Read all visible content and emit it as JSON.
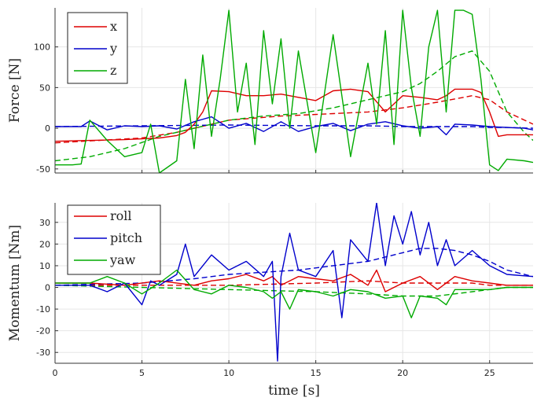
{
  "chart_data": [
    {
      "type": "line",
      "title": "",
      "xlabel": "",
      "ylabel": "Force [N]",
      "xlim": [
        0,
        27.5
      ],
      "ylim": [
        -55,
        148
      ],
      "xticks": [
        0,
        5,
        10,
        15,
        20,
        25
      ],
      "yticks": [
        -50,
        0,
        50,
        100
      ],
      "grid": true,
      "legend": "top-left",
      "series": [
        {
          "name": "x",
          "color": "#dd0000",
          "style": "solid",
          "x": [
            0,
            2,
            4,
            6,
            7,
            7.5,
            8,
            8.5,
            9,
            10,
            11,
            12,
            13,
            14,
            15,
            16,
            17,
            18,
            19,
            20,
            21,
            22,
            22.5,
            23,
            24,
            24.5,
            25,
            25.5,
            26,
            27,
            27.5
          ],
          "y": [
            -16,
            -15,
            -14,
            -12,
            -9,
            -5,
            5,
            20,
            46,
            45,
            40,
            40,
            42,
            38,
            34,
            46,
            48,
            45,
            20,
            40,
            38,
            35,
            40,
            48,
            48,
            44,
            20,
            -10,
            -8,
            -8,
            -8
          ]
        },
        {
          "name": "y",
          "color": "#0000cc",
          "style": "solid",
          "x": [
            0,
            1.5,
            2,
            3,
            4,
            5,
            6,
            7,
            8,
            9,
            10,
            11,
            12,
            13,
            14,
            15,
            16,
            17,
            18,
            19,
            20,
            21,
            22,
            22.5,
            23,
            24,
            25,
            26,
            27,
            27.5
          ],
          "y": [
            2,
            2,
            9,
            -2,
            3,
            2,
            3,
            -1,
            8,
            14,
            0,
            6,
            -4,
            8,
            -4,
            2,
            6,
            -3,
            5,
            8,
            3,
            0,
            2,
            -8,
            5,
            4,
            2,
            1,
            0,
            -2
          ]
        },
        {
          "name": "z",
          "color": "#00aa00",
          "style": "solid",
          "x": [
            0,
            1,
            1.5,
            2,
            3,
            4,
            5,
            5.5,
            6,
            7,
            7.5,
            8,
            8.5,
            9,
            9.5,
            10,
            10.5,
            11,
            11.5,
            12,
            12.5,
            13,
            13.5,
            14,
            15,
            16,
            17,
            18,
            18.5,
            19,
            19.5,
            20,
            20.5,
            21,
            21.5,
            22,
            22.5,
            23,
            23.5,
            24,
            24.5,
            25,
            25.5,
            26,
            27,
            27.5
          ],
          "y": [
            -45,
            -45,
            -44,
            10,
            -15,
            -35,
            -30,
            5,
            -55,
            -40,
            60,
            -25,
            90,
            -10,
            60,
            145,
            20,
            80,
            -20,
            120,
            30,
            110,
            0,
            95,
            -30,
            115,
            -35,
            80,
            5,
            120,
            -20,
            145,
            50,
            -10,
            100,
            145,
            20,
            145,
            145,
            140,
            60,
            -45,
            -52,
            -38,
            -40,
            -42
          ]
        },
        {
          "name": "",
          "color": "#dd0000",
          "style": "dashed",
          "x": [
            0,
            5,
            7,
            8,
            10,
            13,
            16,
            18,
            20,
            22,
            24,
            25,
            26,
            27.5
          ],
          "y": [
            -18,
            -12,
            -5,
            0,
            10,
            15,
            18,
            20,
            25,
            32,
            40,
            35,
            20,
            5
          ]
        },
        {
          "name": "",
          "color": "#0000cc",
          "style": "dashed",
          "x": [
            0,
            5,
            10,
            15,
            18,
            20,
            22,
            24,
            25,
            26,
            27.5
          ],
          "y": [
            2,
            3,
            4,
            3,
            3,
            2,
            2,
            2,
            1,
            1,
            0
          ]
        },
        {
          "name": "",
          "color": "#00aa00",
          "style": "dashed",
          "x": [
            0,
            2,
            4,
            6,
            7,
            8,
            10,
            12,
            14,
            16,
            18,
            20,
            21,
            22,
            23,
            24,
            25,
            26,
            27,
            27.5
          ],
          "y": [
            -40,
            -35,
            -25,
            -10,
            -5,
            0,
            10,
            15,
            18,
            25,
            35,
            45,
            55,
            70,
            88,
            95,
            70,
            20,
            -5,
            -15
          ]
        }
      ]
    },
    {
      "type": "line",
      "title": "",
      "xlabel": "time [s]",
      "ylabel": "Momentum [Nm]",
      "xlim": [
        0,
        27.5
      ],
      "ylim": [
        -35,
        39
      ],
      "xticks": [
        0,
        5,
        10,
        15,
        20,
        25
      ],
      "yticks": [
        -30,
        -20,
        -10,
        0,
        10,
        20,
        30
      ],
      "grid": true,
      "legend": "top-left",
      "series": [
        {
          "name": "roll",
          "color": "#dd0000",
          "style": "solid",
          "x": [
            0,
            2,
            4,
            6,
            8,
            9,
            10,
            11,
            12,
            12.5,
            13,
            14,
            15,
            16,
            17,
            18,
            18.5,
            19,
            20,
            21,
            22,
            23,
            24,
            25,
            26,
            27.5
          ],
          "y": [
            2,
            2,
            1,
            3,
            1,
            3,
            4,
            6,
            3,
            5,
            1,
            5,
            4,
            3,
            6,
            1,
            8,
            -2,
            2,
            5,
            -1,
            5,
            3,
            2,
            1,
            1
          ]
        },
        {
          "name": "pitch",
          "color": "#0000cc",
          "style": "solid",
          "x": [
            0,
            2,
            3,
            4,
            5,
            5.5,
            6,
            7,
            7.5,
            8,
            9,
            10,
            11,
            12,
            12.5,
            12.8,
            13,
            13.5,
            14,
            15,
            16,
            16.5,
            17,
            18,
            18.5,
            19,
            19.5,
            20,
            20.5,
            21,
            21.5,
            22,
            22.5,
            23,
            24,
            25,
            26,
            27.5
          ],
          "y": [
            1,
            1,
            -2,
            2,
            -8,
            3,
            1,
            6,
            20,
            5,
            15,
            8,
            12,
            5,
            12,
            -34,
            5,
            25,
            8,
            5,
            17,
            -14,
            22,
            12,
            39,
            10,
            33,
            20,
            35,
            15,
            30,
            10,
            22,
            10,
            17,
            10,
            6,
            5
          ]
        },
        {
          "name": "yaw",
          "color": "#00aa00",
          "style": "solid",
          "x": [
            0,
            2,
            3,
            4,
            5,
            6,
            7,
            8,
            9,
            10,
            11,
            12,
            12.5,
            13,
            13.5,
            14,
            15,
            16,
            17,
            18,
            19,
            20,
            20.5,
            21,
            22,
            22.5,
            23,
            24,
            25,
            26,
            27.5
          ],
          "y": [
            2,
            2,
            5,
            2,
            -3,
            2,
            8,
            -1,
            -3,
            1,
            0,
            -2,
            -5,
            -2,
            -10,
            -1,
            -2,
            -4,
            -1,
            -2,
            -5,
            -4,
            -14,
            -4,
            -5,
            -8,
            -1,
            -1,
            -1,
            0,
            0
          ]
        },
        {
          "name": "",
          "color": "#dd0000",
          "style": "dashed",
          "x": [
            0,
            10,
            15,
            18,
            20,
            22,
            24,
            25,
            26,
            27.5
          ],
          "y": [
            1,
            1,
            2,
            3,
            2,
            2,
            2,
            1,
            1,
            1
          ]
        },
        {
          "name": "",
          "color": "#0000cc",
          "style": "dashed",
          "x": [
            0,
            5,
            8,
            10,
            12,
            14,
            16,
            18,
            20,
            21,
            22,
            23,
            24,
            25,
            26,
            27.5
          ],
          "y": [
            1,
            2,
            4,
            6,
            7,
            8,
            10,
            12,
            16,
            18,
            18,
            17,
            15,
            12,
            8,
            5
          ]
        },
        {
          "name": "",
          "color": "#00aa00",
          "style": "dashed",
          "x": [
            0,
            5,
            10,
            15,
            18,
            20,
            22,
            24,
            25,
            26,
            27.5
          ],
          "y": [
            1,
            0,
            -1,
            -2,
            -3,
            -4,
            -4,
            -2,
            -1,
            0,
            0
          ]
        }
      ]
    }
  ]
}
